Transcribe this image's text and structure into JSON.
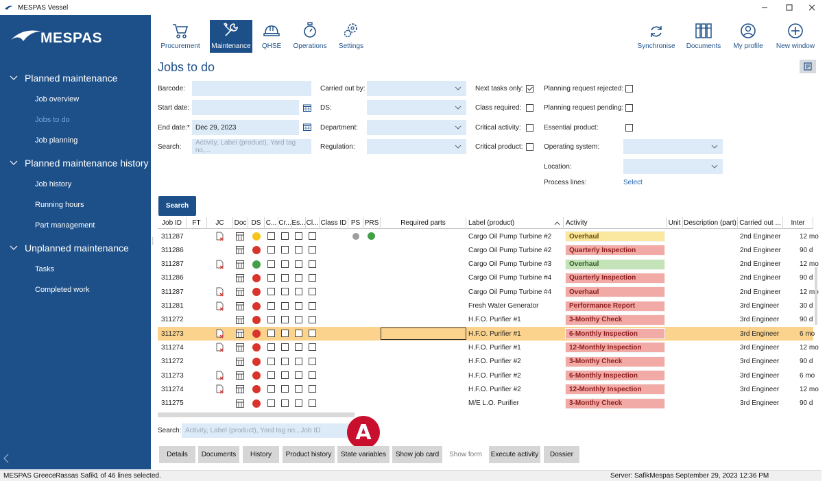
{
  "window": {
    "title": "MESPAS Vessel"
  },
  "sidebar": {
    "logo_text": "MESPAS",
    "sections": [
      {
        "label": "Planned maintenance",
        "items": [
          {
            "label": "Job overview",
            "active": false
          },
          {
            "label": "Jobs to do",
            "active": true
          },
          {
            "label": "Job planning",
            "active": false
          }
        ]
      },
      {
        "label": "Planned maintenance history",
        "items": [
          {
            "label": "Job history",
            "active": false
          },
          {
            "label": "Running hours",
            "active": false
          },
          {
            "label": "Part management",
            "active": false
          }
        ]
      },
      {
        "label": "Unplanned maintenance",
        "items": [
          {
            "label": "Tasks",
            "active": false
          },
          {
            "label": "Completed work",
            "active": false
          }
        ]
      }
    ]
  },
  "toolbar": {
    "modules": [
      {
        "label": "Procurement",
        "icon": "cart-icon",
        "active": false
      },
      {
        "label": "Maintenance",
        "icon": "wrench-icon",
        "active": true
      },
      {
        "label": "QHSE",
        "icon": "hardhat-icon",
        "active": false
      },
      {
        "label": "Operations",
        "icon": "stopwatch-icon",
        "active": false
      },
      {
        "label": "Settings",
        "icon": "gears-icon",
        "active": false
      }
    ],
    "right": [
      {
        "label": "Synchronise",
        "icon": "sync-icon"
      },
      {
        "label": "Documents",
        "icon": "binders-icon"
      },
      {
        "label": "My profile",
        "icon": "user-icon"
      },
      {
        "label": "New window",
        "icon": "plus-circle-icon"
      }
    ]
  },
  "page": {
    "title": "Jobs to do"
  },
  "filters": {
    "barcode_label": "Barcode:",
    "barcode_value": "",
    "start_date_label": "Start date:",
    "start_date_value": "",
    "end_date_label": "End date:*",
    "end_date_value": "Dec 29, 2023",
    "search_label": "Search:",
    "search_placeholder": "Activity, Label (product), Yard tag no,...",
    "carried_out_by_label": "Carried out by:",
    "ds_label": "DS:",
    "department_label": "Department:",
    "regulation_label": "Regulation:",
    "next_tasks_only_label": "Next tasks only:",
    "next_tasks_only": true,
    "class_required_label": "Class required:",
    "class_required": false,
    "critical_activity_label": "Critical activity:",
    "critical_activity": false,
    "critical_product_label": "Critical product:",
    "critical_product": false,
    "planning_request_rejected_label": "Planning request rejected:",
    "planning_request_rejected": false,
    "planning_request_pending_label": "Planning request pending:",
    "planning_request_pending": false,
    "essential_product_label": "Essential product:",
    "essential_product": false,
    "operating_system_label": "Operating system:",
    "location_label": "Location:",
    "process_lines_label": "Process lines:",
    "process_lines_link": "Select",
    "search_button": "Search"
  },
  "grid": {
    "columns": [
      "Job ID",
      "FT",
      "JC",
      "Doc",
      "DS",
      "C...",
      "Cr...",
      "Es...",
      "Cl...",
      "Class ID",
      "PS",
      "PRS",
      "Required parts",
      "Label (product)",
      "Activity",
      "Unit",
      "Description (part)",
      "Carried out ...",
      "Inter"
    ],
    "rows": [
      {
        "job_id": "311287",
        "jc": true,
        "ds": "#f5c518",
        "ps": "#9e9e9e",
        "prs": "#43a047",
        "label": "Cargo Oil Pump Turbine #2",
        "activity": "Overhaul",
        "activity_color": "#fbe8a0",
        "activity_text": "#6b4c00",
        "carried_out": "2nd Engineer",
        "interval": "12 mo",
        "selected": false
      },
      {
        "job_id": "311286",
        "jc": false,
        "ds": "#d9342b",
        "ps": "",
        "prs": "",
        "label": "Cargo Oil Pump Turbine #2",
        "activity": "Quarterly Inspection",
        "activity_color": "#f2aaa6",
        "activity_text": "#8b1d1d",
        "carried_out": "2nd Engineer",
        "interval": "90 d",
        "selected": false
      },
      {
        "job_id": "311287",
        "jc": true,
        "ds": "#43a047",
        "ps": "",
        "prs": "",
        "label": "Cargo Oil Pump Turbine #3",
        "activity": "Overhaul",
        "activity_color": "#c5e3b9",
        "activity_text": "#2e5e1f",
        "carried_out": "2nd Engineer",
        "interval": "12 mo",
        "selected": false
      },
      {
        "job_id": "311286",
        "jc": false,
        "ds": "#d9342b",
        "ps": "",
        "prs": "",
        "label": "Cargo Oil Pump Turbine #4",
        "activity": "Quarterly Inspection",
        "activity_color": "#f2aaa6",
        "activity_text": "#8b1d1d",
        "carried_out": "2nd Engineer",
        "interval": "90 d",
        "selected": false
      },
      {
        "job_id": "311287",
        "jc": true,
        "ds": "#d9342b",
        "ps": "",
        "prs": "",
        "label": "Cargo Oil Pump Turbine #4",
        "activity": "Overhaul",
        "activity_color": "#f2aaa6",
        "activity_text": "#8b1d1d",
        "carried_out": "2nd Engineer",
        "interval": "12 mo",
        "selected": false
      },
      {
        "job_id": "311281",
        "jc": true,
        "ds": "#d9342b",
        "ps": "",
        "prs": "",
        "label": "Fresh Water Generator",
        "activity": "Performance Report",
        "activity_color": "#f2aaa6",
        "activity_text": "#8b1d1d",
        "carried_out": "3rd Engineer",
        "interval": "30 d",
        "selected": false
      },
      {
        "job_id": "311272",
        "jc": false,
        "ds": "#d9342b",
        "ps": "",
        "prs": "",
        "label": "H.F.O. Purifier #1",
        "activity": "3-Monthy Check",
        "activity_color": "#f2aaa6",
        "activity_text": "#8b1d1d",
        "carried_out": "3rd Engineer",
        "interval": "90 d",
        "selected": false
      },
      {
        "job_id": "311273",
        "jc": true,
        "ds": "#d9342b",
        "ps": "",
        "prs": "",
        "label": "H.F.O. Purifier #1",
        "activity": "6-Monthly Inspection",
        "activity_color": "#f2aaa6",
        "activity_text": "#8b1d1d",
        "carried_out": "3rd Engineer",
        "interval": "6 mo",
        "selected": true
      },
      {
        "job_id": "311274",
        "jc": true,
        "ds": "#d9342b",
        "ps": "",
        "prs": "",
        "label": "H.F.O. Purifier #1",
        "activity": "12-Monthly Inspection",
        "activity_color": "#f2aaa6",
        "activity_text": "#8b1d1d",
        "carried_out": "3rd Engineer",
        "interval": "12 mo",
        "selected": false
      },
      {
        "job_id": "311272",
        "jc": false,
        "ds": "#d9342b",
        "ps": "",
        "prs": "",
        "label": "H.F.O. Purifier #2",
        "activity": "3-Monthy Check",
        "activity_color": "#f2aaa6",
        "activity_text": "#8b1d1d",
        "carried_out": "3rd Engineer",
        "interval": "90 d",
        "selected": false
      },
      {
        "job_id": "311273",
        "jc": true,
        "ds": "#d9342b",
        "ps": "",
        "prs": "",
        "label": "H.F.O. Purifier #2",
        "activity": "6-Monthly Inspection",
        "activity_color": "#f2aaa6",
        "activity_text": "#8b1d1d",
        "carried_out": "3rd Engineer",
        "interval": "6 mo",
        "selected": false
      },
      {
        "job_id": "311274",
        "jc": true,
        "ds": "#d9342b",
        "ps": "",
        "prs": "",
        "label": "H.F.O. Purifier #2",
        "activity": "12-Monthly Inspection",
        "activity_color": "#f2aaa6",
        "activity_text": "#8b1d1d",
        "carried_out": "3rd Engineer",
        "interval": "12 mo",
        "selected": false
      },
      {
        "job_id": "311275",
        "jc": false,
        "ds": "#d9342b",
        "ps": "",
        "prs": "",
        "label": "M/E L.O. Purifier",
        "activity": "3-Monthy Check",
        "activity_color": "#f2aaa6",
        "activity_text": "#8b1d1d",
        "carried_out": "3rd Engineer",
        "interval": "90 d",
        "selected": false
      }
    ]
  },
  "bottom": {
    "search_label": "Search:",
    "search_placeholder": "Activity, Label (product), Yard tag no., Job ID",
    "badge": "A",
    "buttons": [
      {
        "label": "Details",
        "enabled": true
      },
      {
        "label": "Documents",
        "enabled": true
      },
      {
        "label": "History",
        "enabled": true
      },
      {
        "label": "Product history",
        "enabled": true
      },
      {
        "label": "State variables",
        "enabled": true
      },
      {
        "label": "Show job card",
        "enabled": true
      },
      {
        "label": "Show form",
        "enabled": false
      },
      {
        "label": "Execute activity",
        "enabled": true
      },
      {
        "label": "Dossier",
        "enabled": true
      }
    ]
  },
  "status": {
    "company": "MESPAS Greece",
    "user": "Rassas Safik",
    "selection": "1 of 46 lines selected.",
    "server": "Server: SafikMespas",
    "datetime": "September 29, 2023 12:36 PM"
  },
  "colors": {
    "brand": "#1d5089",
    "selected_row": "#fbd38d",
    "field": "#ddebf8",
    "badge": "#c8102e"
  }
}
